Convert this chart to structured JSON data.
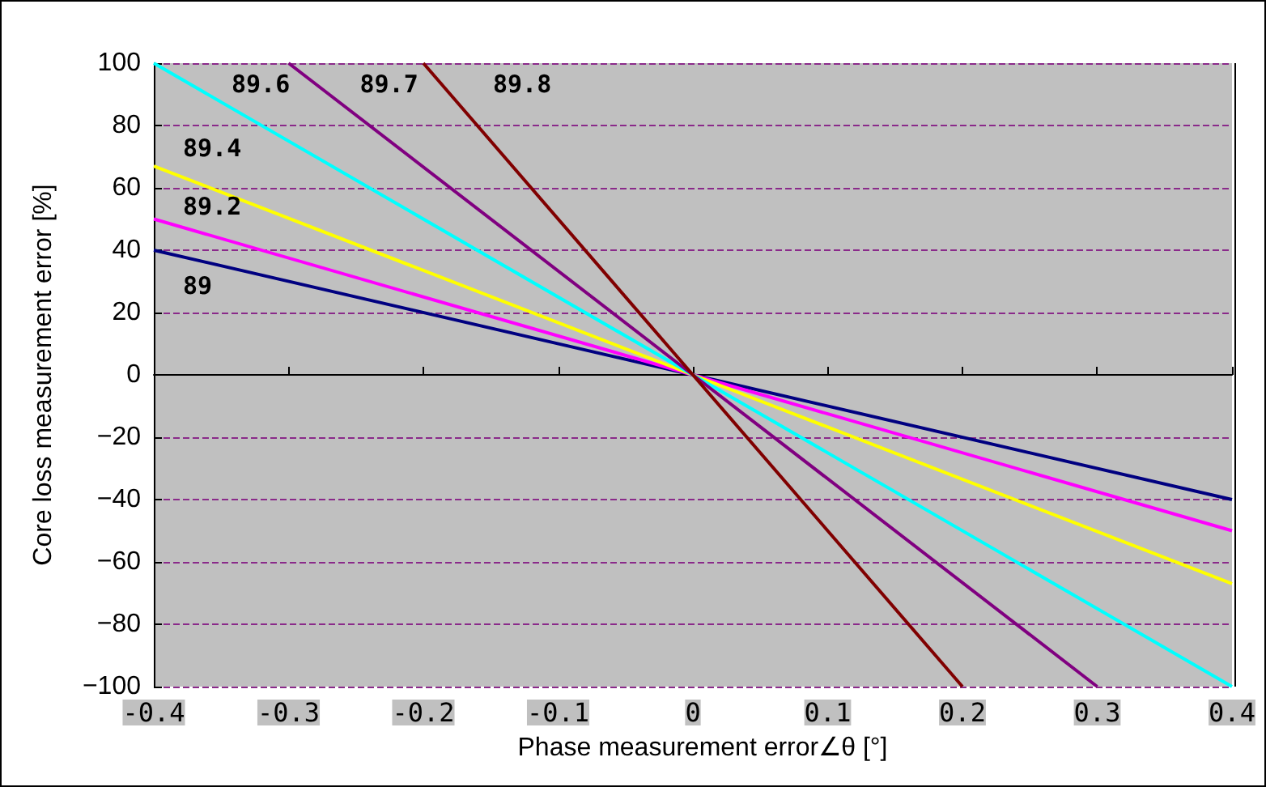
{
  "chart_data": {
    "type": "line",
    "xlabel": "Phase measurement error∠θ [°]",
    "ylabel": "Core loss measurement error [%]",
    "xlim": [
      -0.4,
      0.4
    ],
    "xticks": [
      -0.4,
      -0.3,
      -0.2,
      -0.1,
      0,
      0.1,
      0.2,
      0.3,
      0.4
    ],
    "ylim": [
      -100,
      100
    ],
    "yticks": [
      -100,
      -80,
      -60,
      -40,
      -20,
      0,
      20,
      40,
      60,
      80,
      100
    ],
    "grid": "y",
    "legend": false,
    "marker": "none",
    "line_style": "solid",
    "series": [
      {
        "name": "89",
        "color": "#000080",
        "x": [
          -0.4,
          0,
          0.4
        ],
        "values": [
          40,
          0,
          -40
        ]
      },
      {
        "name": "89.2",
        "color": "#ff00ff",
        "x": [
          -0.4,
          0,
          0.4
        ],
        "values": [
          50,
          0,
          -50
        ]
      },
      {
        "name": "89.4",
        "color": "#ffff00",
        "x": [
          -0.4,
          0,
          0.4
        ],
        "values": [
          67,
          0,
          -67
        ]
      },
      {
        "name": "89.6",
        "color": "#00ffff",
        "x": [
          -0.4,
          0,
          0.4
        ],
        "values": [
          100,
          0,
          -100
        ]
      },
      {
        "name": "89.7",
        "color": "#800080",
        "x": [
          -0.3,
          0,
          0.3
        ],
        "values": [
          100,
          0,
          -100
        ]
      },
      {
        "name": "89.8",
        "color": "#800000",
        "x": [
          -0.2,
          0,
          0.2
        ],
        "values": [
          100,
          0,
          -100
        ]
      }
    ]
  }
}
